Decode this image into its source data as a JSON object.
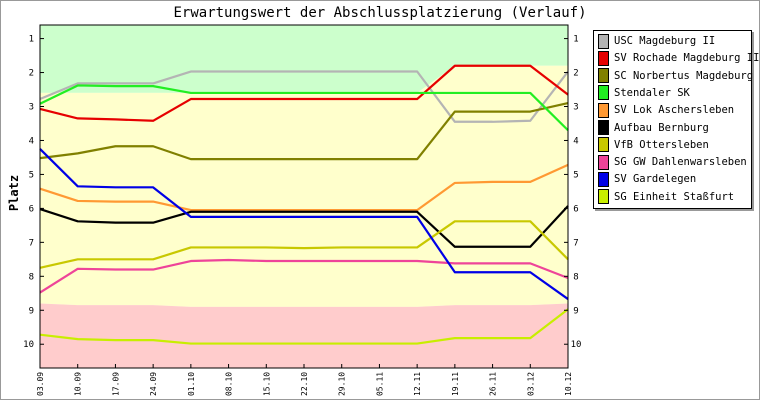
{
  "chart_data": {
    "type": "line",
    "title": "Erwartungswert der Abschlussplatzierung (Verlauf)",
    "ylabel": "Platz",
    "xlabel": "",
    "x": [
      "03.09",
      "10.09",
      "17.09",
      "24.09",
      "01.10",
      "08.10",
      "15.10",
      "22.10",
      "29.10",
      "05.11",
      "12.11",
      "19.11",
      "26.11",
      "03.12",
      "10.12"
    ],
    "ylim": [
      0.6,
      10.7
    ],
    "y_ticks": [
      "1",
      "2",
      "3",
      "4",
      "5",
      "6",
      "7",
      "8",
      "9",
      "10"
    ],
    "y_inverted": true,
    "legend_position": "right",
    "bands": [
      {
        "from": 0.6,
        "to": [
          2.6,
          2.6,
          2.6,
          2.6,
          2.6,
          2.6,
          2.6,
          2.6,
          2.6,
          2.6,
          2.6,
          1.8,
          1.8,
          1.8,
          1.8
        ],
        "color": "#ccffcc"
      },
      {
        "from": [
          2.6,
          2.6,
          2.6,
          2.6,
          2.6,
          2.6,
          2.6,
          2.6,
          2.6,
          2.6,
          2.6,
          1.8,
          1.8,
          1.8,
          1.8
        ],
        "to": [
          8.8,
          8.85,
          8.85,
          8.85,
          8.9,
          8.9,
          8.9,
          8.9,
          8.9,
          8.9,
          8.9,
          8.85,
          8.85,
          8.85,
          8.8
        ],
        "color": "#ffffcc"
      },
      {
        "from": [
          8.8,
          8.85,
          8.85,
          8.85,
          8.9,
          8.9,
          8.9,
          8.9,
          8.9,
          8.9,
          8.9,
          8.85,
          8.85,
          8.85,
          8.8
        ],
        "to": 10.7,
        "color": "#ffcccc"
      }
    ],
    "series": [
      {
        "name": "USC Magdeburg II",
        "color": "#b4b4b4",
        "values": [
          2.78,
          2.32,
          2.32,
          2.32,
          1.97,
          1.97,
          1.97,
          1.97,
          1.97,
          1.97,
          1.97,
          3.45,
          3.45,
          3.42,
          1.97
        ]
      },
      {
        "name": "SV Rochade Magdeburg II",
        "color": "#e60000",
        "values": [
          3.07,
          3.35,
          3.38,
          3.42,
          2.78,
          2.78,
          2.78,
          2.78,
          2.78,
          2.78,
          2.78,
          1.8,
          1.8,
          1.8,
          2.65
        ]
      },
      {
        "name": "SC Norbertus Magdeburg",
        "color": "#808000",
        "values": [
          4.52,
          4.38,
          4.17,
          4.17,
          4.55,
          4.55,
          4.55,
          4.55,
          4.55,
          4.55,
          4.55,
          3.15,
          3.15,
          3.15,
          2.9
        ]
      },
      {
        "name": "Stendaler SK",
        "color": "#22ee22",
        "values": [
          2.92,
          2.38,
          2.4,
          2.4,
          2.6,
          2.6,
          2.6,
          2.6,
          2.6,
          2.6,
          2.6,
          2.6,
          2.6,
          2.6,
          3.7
        ]
      },
      {
        "name": "SV Lok Aschersleben",
        "color": "#ff9933",
        "values": [
          5.42,
          5.78,
          5.8,
          5.8,
          6.05,
          6.05,
          6.05,
          6.05,
          6.05,
          6.05,
          6.05,
          5.25,
          5.22,
          5.22,
          4.72
        ]
      },
      {
        "name": "Aufbau Bernburg",
        "color": "#000000",
        "values": [
          6.02,
          6.38,
          6.42,
          6.42,
          6.1,
          6.1,
          6.1,
          6.1,
          6.1,
          6.1,
          6.1,
          7.13,
          7.13,
          7.13,
          5.93
        ]
      },
      {
        "name": "VfB Ottersleben",
        "color": "#c8c800",
        "values": [
          7.75,
          7.5,
          7.5,
          7.5,
          7.15,
          7.15,
          7.15,
          7.17,
          7.15,
          7.15,
          7.15,
          6.38,
          6.38,
          6.38,
          7.5
        ]
      },
      {
        "name": "SG GW Dahlenwarsleben",
        "color": "#ee4499",
        "values": [
          8.48,
          7.78,
          7.8,
          7.8,
          7.55,
          7.52,
          7.55,
          7.55,
          7.55,
          7.55,
          7.55,
          7.62,
          7.62,
          7.62,
          8.05
        ]
      },
      {
        "name": "SV Gardelegen",
        "color": "#0000e6",
        "values": [
          4.25,
          5.35,
          5.38,
          5.38,
          6.25,
          6.25,
          6.25,
          6.25,
          6.25,
          6.25,
          6.25,
          7.88,
          7.88,
          7.88,
          8.67
        ]
      },
      {
        "name": "SG Einheit Staßfurt",
        "color": "#c8ee00",
        "values": [
          9.72,
          9.85,
          9.88,
          9.88,
          9.98,
          9.98,
          9.98,
          9.98,
          9.98,
          9.98,
          9.98,
          9.82,
          9.82,
          9.82,
          8.97
        ]
      }
    ]
  }
}
